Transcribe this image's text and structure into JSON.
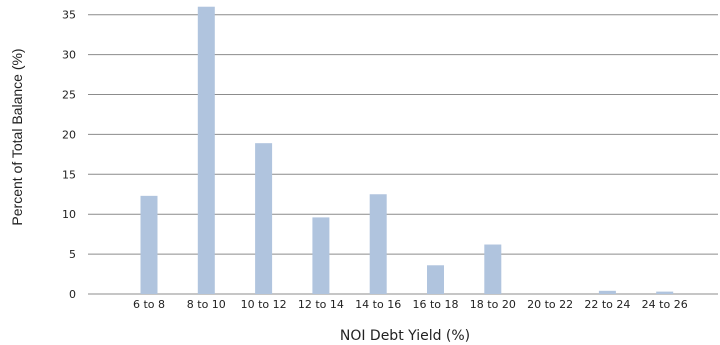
{
  "chart_data": {
    "type": "bar",
    "categories": [
      "6 to 8",
      "8 to 10",
      "10 to 12",
      "12 to 14",
      "14 to 16",
      "16 to 18",
      "18 to 20",
      "20 to 22",
      "22 to 24",
      "24 to 26"
    ],
    "values": [
      12.3,
      36.0,
      18.9,
      9.6,
      12.5,
      3.6,
      6.2,
      0,
      0.4,
      0.3
    ],
    "xlabel": "NOI Debt Yield (%)",
    "ylabel": "Percent of Total Balance (%)",
    "ylim": [
      0,
      36
    ],
    "yticks": [
      0,
      5,
      10,
      15,
      20,
      25,
      30,
      35
    ],
    "grid": true,
    "legend": "none",
    "bar_color": "#b0c4de",
    "grid_color": "#8c8c8c"
  }
}
